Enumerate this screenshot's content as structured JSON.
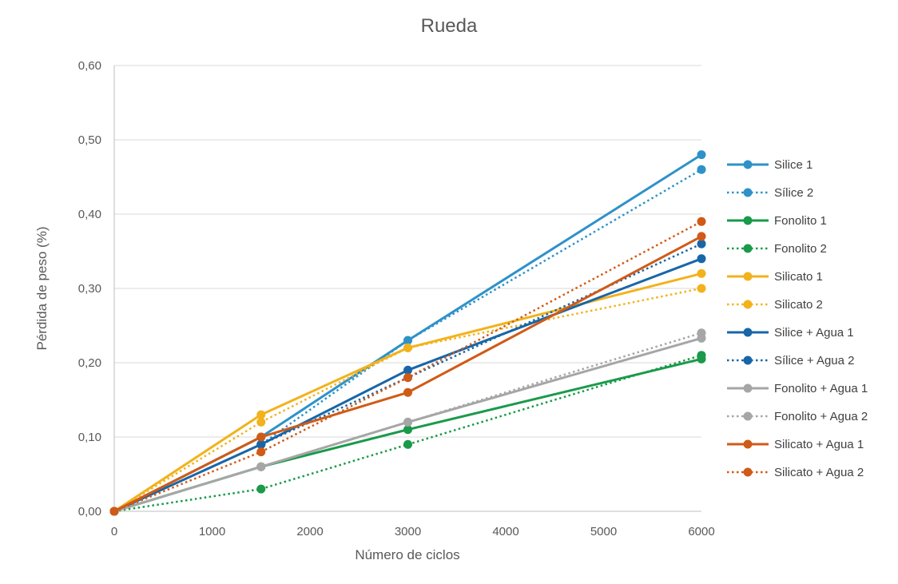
{
  "chart_data": {
    "type": "line",
    "title": "Rueda",
    "xlabel": "Número de ciclos",
    "ylabel": "Pérdida de peso (%)",
    "xlim": [
      0,
      6000
    ],
    "ylim": [
      0,
      0.6
    ],
    "x_ticks": [
      0,
      1000,
      2000,
      3000,
      4000,
      5000,
      6000
    ],
    "x_tick_labels": [
      "0",
      "1000",
      "2000",
      "3000",
      "4000",
      "5000",
      "6000"
    ],
    "y_ticks": [
      0,
      0.1,
      0.2,
      0.3,
      0.4,
      0.5,
      0.6
    ],
    "y_tick_labels": [
      "0,00",
      "0,10",
      "0,20",
      "0,30",
      "0,40",
      "0,50",
      "0,60"
    ],
    "grid": true,
    "legend_position": "right",
    "x": [
      0,
      1500,
      3000,
      6000
    ],
    "series": [
      {
        "name": "Silice 1",
        "values": [
          0,
          0.1,
          0.23,
          0.48
        ],
        "color": "#2e92c8",
        "dash": "solid"
      },
      {
        "name": "Sílice 2",
        "values": [
          0,
          0.09,
          0.23,
          0.46
        ],
        "color": "#2e92c8",
        "dash": "dotted"
      },
      {
        "name": "Fonolito 1",
        "values": [
          0,
          0.06,
          0.11,
          0.205
        ],
        "color": "#1a9a4a",
        "dash": "solid"
      },
      {
        "name": "Fonolito 2",
        "values": [
          0,
          0.03,
          0.09,
          0.21
        ],
        "color": "#1a9a4a",
        "dash": "dotted"
      },
      {
        "name": "Silicato 1",
        "values": [
          0,
          0.13,
          0.22,
          0.32
        ],
        "color": "#f2b21c",
        "dash": "solid"
      },
      {
        "name": "Silicato 2",
        "values": [
          0,
          0.12,
          0.22,
          0.3
        ],
        "color": "#f2b21c",
        "dash": "dotted"
      },
      {
        "name": "Silice + Agua 1",
        "values": [
          0,
          0.09,
          0.19,
          0.34
        ],
        "color": "#1866a8",
        "dash": "solid"
      },
      {
        "name": "Sílice + Agua 2",
        "values": [
          0,
          0.09,
          0.18,
          0.36
        ],
        "color": "#1866a8",
        "dash": "dotted"
      },
      {
        "name": "Fonolito + Agua 1",
        "values": [
          0,
          0.06,
          0.12,
          0.233
        ],
        "color": "#a6a6a6",
        "dash": "solid"
      },
      {
        "name": "Fonolito + Agua 2",
        "values": [
          0,
          0.06,
          0.12,
          0.24
        ],
        "color": "#a6a6a6",
        "dash": "dotted"
      },
      {
        "name": "Silicato + Agua 1",
        "values": [
          0,
          0.1,
          0.16,
          0.37
        ],
        "color": "#d05a16",
        "dash": "solid"
      },
      {
        "name": "Silicato + Agua 2",
        "values": [
          0,
          0.08,
          0.18,
          0.39
        ],
        "color": "#d05a16",
        "dash": "dotted"
      }
    ]
  }
}
